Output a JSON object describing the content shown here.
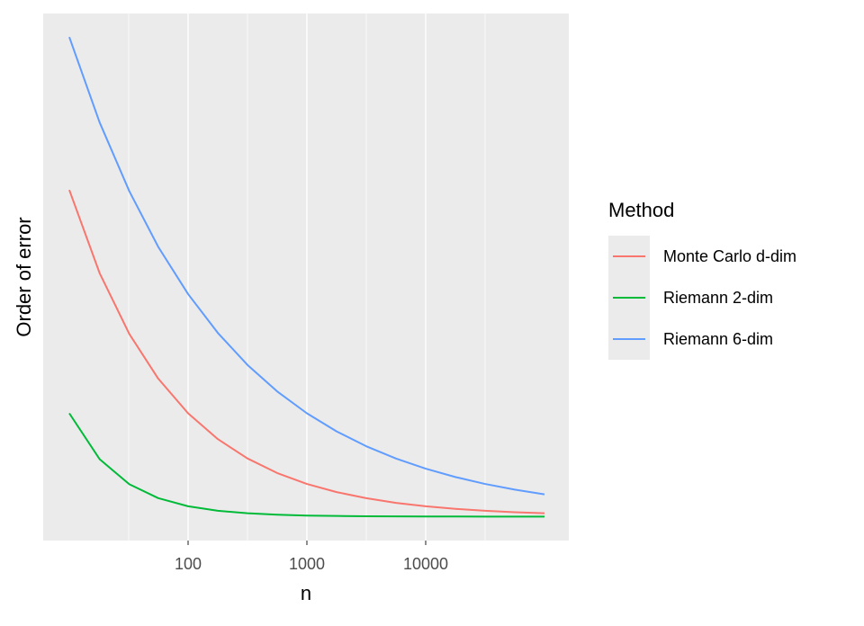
{
  "chart_data": {
    "type": "line",
    "x_label": "n",
    "y_label": "Order of error",
    "x": [
      10,
      18,
      32,
      56,
      100,
      178,
      316,
      562,
      1000,
      1778,
      3162,
      5623,
      10000,
      17783,
      31623,
      56234,
      100000
    ],
    "series": [
      {
        "name": "Monte Carlo d-dim",
        "color": "#F8766D",
        "values": [
          0.3162,
          0.2357,
          0.1768,
          0.1336,
          0.1,
          0.075,
          0.0563,
          0.0422,
          0.0316,
          0.0237,
          0.0178,
          0.0133,
          0.01,
          0.0075,
          0.0056,
          0.0042,
          0.0032
        ]
      },
      {
        "name": "Riemann 2-dim",
        "color": "#00BA38",
        "values": [
          0.1,
          0.0556,
          0.0313,
          0.0179,
          0.01,
          0.0056,
          0.0032,
          0.0018,
          0.001,
          0.0006,
          0.0003,
          0.0002,
          0.0001,
          0.0001,
          0.0,
          0.0,
          0.0
        ]
      },
      {
        "name": "Riemann 6-dim",
        "color": "#619CFF",
        "values": [
          0.4642,
          0.3816,
          0.315,
          0.2612,
          0.2154,
          0.1778,
          0.1468,
          0.1212,
          0.1,
          0.0825,
          0.0681,
          0.0562,
          0.0464,
          0.0383,
          0.0316,
          0.0261,
          0.0215
        ]
      }
    ],
    "legend_title": "Method",
    "legend_position": "right",
    "x_log": true,
    "xlim": [
      6.03,
      160200
    ],
    "xticks": [
      100,
      1000,
      10000
    ],
    "ylim": [
      -0.0232,
      0.487
    ],
    "grid": true
  }
}
